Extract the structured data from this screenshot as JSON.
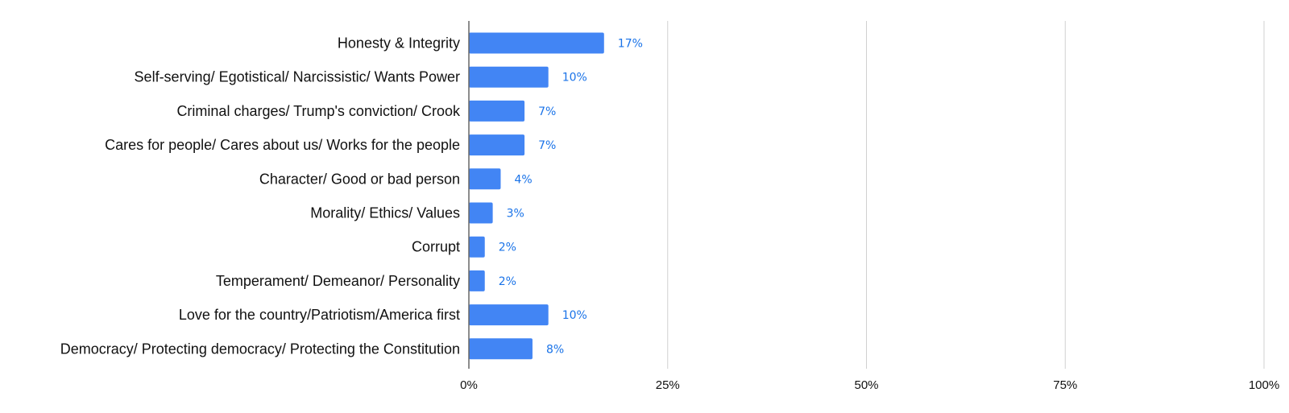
{
  "chart_data": {
    "type": "bar",
    "orientation": "horizontal",
    "categories": [
      "Honesty & Integrity",
      "Self-serving/ Egotistical/ Narcissistic/ Wants Power",
      "Criminal charges/ Trump's conviction/ Crook",
      "Cares for people/ Cares about us/ Works for the people",
      "Character/ Good or bad person",
      "Morality/ Ethics/ Values",
      "Corrupt",
      "Temperament/ Demeanor/ Personality",
      "Love for the country/Patriotism/America first",
      "Democracy/ Protecting democracy/ Protecting the Constitution"
    ],
    "values": [
      17,
      10,
      7,
      7,
      4,
      3,
      2,
      2,
      10,
      8
    ],
    "data_labels": [
      "17%",
      "10%",
      "7%",
      "7%",
      "4%",
      "3%",
      "2%",
      "2%",
      "10%",
      "8%"
    ],
    "xlim": [
      0,
      100
    ],
    "x_ticks": [
      0,
      25,
      50,
      75,
      100
    ],
    "x_tick_labels": [
      "0%",
      "25%",
      "50%",
      "75%",
      "100%"
    ],
    "grid": true,
    "legend": "none",
    "bar_color": "#4285f4",
    "label_color": "#1a73e8",
    "grid_color": "#d0d0d0",
    "axis_color": "#666666"
  }
}
